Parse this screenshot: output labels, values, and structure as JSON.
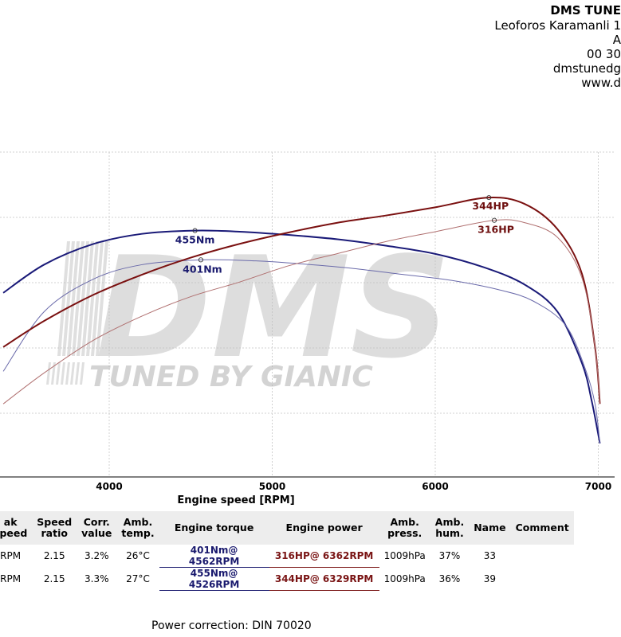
{
  "header": {
    "company": "DMS TUNE",
    "lines": [
      "Leoforos Karamanli 1",
      "A",
      "00 30",
      "dmstunedg",
      "www.d"
    ]
  },
  "chart_data": {
    "type": "line",
    "xlabel": "Engine speed [RPM]",
    "xlim": [
      3350,
      7100
    ],
    "torque_ylim": [
      0,
      600
    ],
    "power_ylim": [
      0,
      400
    ],
    "x_ticks": [
      4000,
      5000,
      6000,
      7000
    ],
    "colors": {
      "torque_tuned": "#1a1a78",
      "torque_stock": "#6a6aaa",
      "power_tuned": "#7a1010",
      "power_stock": "#b07070"
    },
    "series": [
      {
        "key": "torque_tuned",
        "axis": "torque",
        "x": [
          3350,
          3600,
          3900,
          4200,
          4526,
          4800,
          5100,
          5400,
          5700,
          6000,
          6300,
          6550,
          6750,
          6900,
          6960,
          7010
        ],
        "y": [
          340,
          392,
          430,
          449,
          455,
          453,
          447,
          439,
          427,
          412,
          387,
          355,
          305,
          210,
          140,
          62
        ],
        "peak": {
          "x": 4526,
          "y": 455,
          "label": "455Nm"
        }
      },
      {
        "key": "torque_stock",
        "axis": "torque",
        "x": [
          3350,
          3600,
          3900,
          4200,
          4562,
          4900,
          5200,
          5500,
          5800,
          6100,
          6400,
          6600,
          6800,
          6920,
          6980,
          7010
        ],
        "y": [
          195,
          305,
          365,
          392,
          401,
          399,
          393,
          385,
          374,
          363,
          345,
          325,
          280,
          200,
          135,
          62
        ],
        "peak": {
          "x": 4562,
          "y": 401,
          "label": "401Nm"
        }
      },
      {
        "key": "power_tuned",
        "axis": "power",
        "x": [
          3350,
          3600,
          3900,
          4200,
          4500,
          4800,
          5100,
          5400,
          5700,
          6000,
          6329,
          6550,
          6750,
          6900,
          6980,
          7010
        ],
        "y": [
          160,
          192,
          224,
          249,
          270,
          287,
          301,
          313,
          322,
          332,
          344,
          336,
          305,
          250,
          160,
          90
        ],
        "peak": {
          "x": 6329,
          "y": 344,
          "label": "344HP"
        }
      },
      {
        "key": "power_stock",
        "axis": "power",
        "x": [
          3350,
          3600,
          3900,
          4200,
          4500,
          4800,
          5100,
          5400,
          5700,
          6000,
          6362,
          6550,
          6750,
          6900,
          6980,
          7010
        ],
        "y": [
          90,
          128,
          168,
          198,
          222,
          240,
          260,
          275,
          290,
          302,
          316,
          313,
          295,
          245,
          160,
          90
        ],
        "peak": {
          "x": 6362,
          "y": 316,
          "label": "316HP"
        }
      }
    ]
  },
  "watermark": {
    "logo": "DMS",
    "tagline": "TUNED BY GIANIC"
  },
  "table": {
    "headers": [
      [
        "ak",
        "speed"
      ],
      [
        "Speed",
        "ratio"
      ],
      [
        "Corr.",
        "value"
      ],
      [
        "Amb.",
        "temp."
      ],
      [
        "Engine torque"
      ],
      [
        "Engine power"
      ],
      [
        "Amb.",
        "press."
      ],
      [
        "Amb.",
        "hum."
      ],
      [
        "Name"
      ],
      [
        "Comment"
      ]
    ],
    "rows": [
      {
        "rpm": "RPM",
        "ratio": "2.15",
        "corr": "3.2%",
        "temp": "26°C",
        "torque": "401Nm@ 4562RPM",
        "power": "316HP@ 6362RPM",
        "press": "1009hPa",
        "hum": "37%",
        "name": "33",
        "comment": ""
      },
      {
        "rpm": "RPM",
        "ratio": "2.15",
        "corr": "3.3%",
        "temp": "27°C",
        "torque": "455Nm@ 4526RPM",
        "power": "344HP@ 6329RPM",
        "press": "1009hPa",
        "hum": "36%",
        "name": "39",
        "comment": ""
      }
    ]
  },
  "footer": "Power correction: DIN 70020"
}
